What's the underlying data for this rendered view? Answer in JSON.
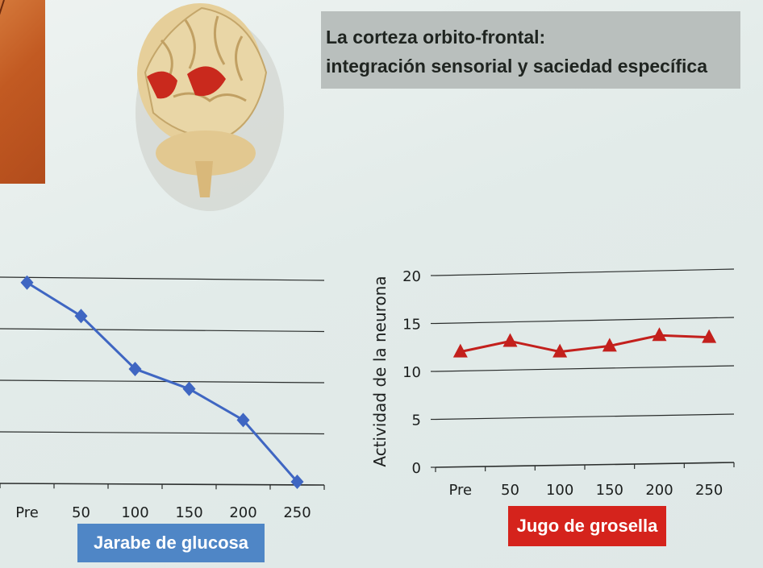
{
  "slide": {
    "title_line1": "La corteza orbito-frontal:",
    "title_line2": "integración sensorial y saciedad específica"
  },
  "colors": {
    "left_series": "#3f66c2",
    "right_series": "#c3201c",
    "left_caption_bg": "#4f86c6",
    "right_caption_bg": "#d5231c",
    "gridline": "#2a2d2c"
  },
  "chart_data": [
    {
      "type": "line",
      "categories": [
        "Pre",
        "50",
        "100",
        "150",
        "200",
        "250"
      ],
      "series": [
        {
          "values": [
            19.5,
            16.3,
            11.2,
            9.3,
            6.3,
            0.3
          ],
          "marker": "diamond"
        }
      ],
      "xlabel": "Jarabe de glucosa",
      "ylabel": "",
      "ylim": [
        0,
        20
      ],
      "grid": true
    },
    {
      "type": "line",
      "categories": [
        "Pre",
        "50",
        "100",
        "150",
        "200",
        "250"
      ],
      "series": [
        {
          "values": [
            12.0,
            13.0,
            11.8,
            12.3,
            13.3,
            13.0
          ],
          "marker": "triangle"
        }
      ],
      "xlabel": "Jugo de grosella",
      "ylabel": "Actividad de la neurona",
      "yticks": [
        "0",
        "5",
        "10",
        "15",
        "20"
      ],
      "ylim": [
        0,
        20
      ],
      "grid": true
    }
  ]
}
